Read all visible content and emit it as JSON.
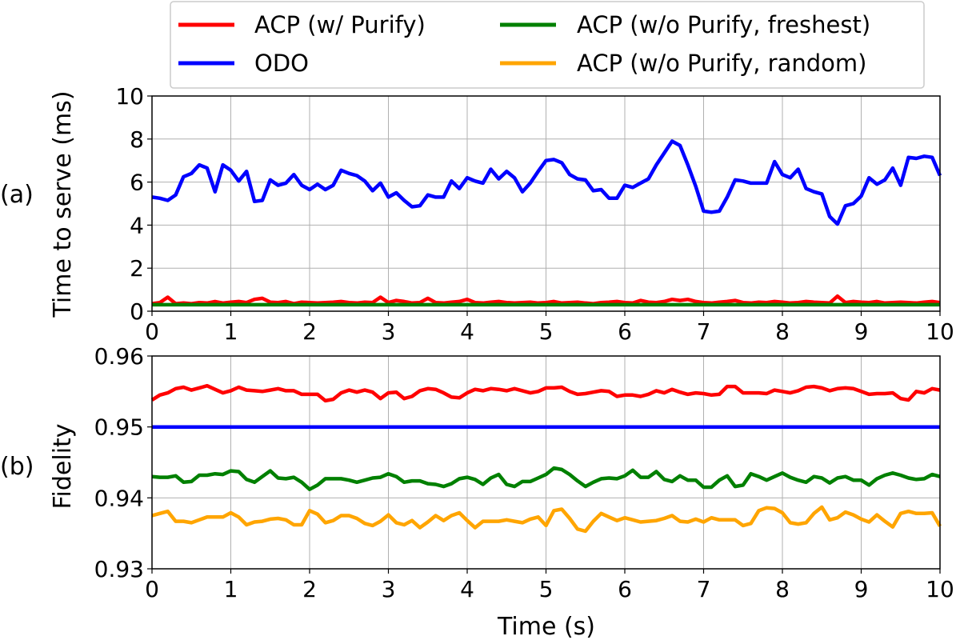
{
  "chart_data": [
    {
      "id": "a",
      "type": "line",
      "panel_label": "(a)",
      "ylabel": "Time to serve (ms)",
      "xlim": [
        0,
        10
      ],
      "ylim": [
        0,
        10
      ],
      "xticks": [
        "0",
        "1",
        "2",
        "3",
        "4",
        "5",
        "6",
        "7",
        "8",
        "9",
        "10"
      ],
      "yticks": [
        "0",
        "2",
        "4",
        "6",
        "8",
        "10"
      ],
      "grid": true,
      "x": [
        0,
        0.1,
        0.2,
        0.3,
        0.4,
        0.5,
        0.6,
        0.7,
        0.8,
        0.9,
        1.0,
        1.1,
        1.2,
        1.3,
        1.4,
        1.5,
        1.6,
        1.7,
        1.8,
        1.9,
        2.0,
        2.1,
        2.2,
        2.3,
        2.4,
        2.5,
        2.6,
        2.7,
        2.8,
        2.9,
        3.0,
        3.1,
        3.2,
        3.3,
        3.4,
        3.5,
        3.6,
        3.7,
        3.8,
        3.9,
        4.0,
        4.1,
        4.2,
        4.3,
        4.4,
        4.5,
        4.6,
        4.7,
        4.8,
        4.9,
        5.0,
        5.1,
        5.2,
        5.3,
        5.4,
        5.5,
        5.6,
        5.7,
        5.8,
        5.9,
        6.0,
        6.1,
        6.2,
        6.3,
        6.4,
        6.5,
        6.6,
        6.7,
        6.8,
        6.9,
        7.0,
        7.1,
        7.2,
        7.3,
        7.4,
        7.5,
        7.6,
        7.7,
        7.8,
        7.9,
        8.0,
        8.1,
        8.2,
        8.3,
        8.4,
        8.5,
        8.6,
        8.7,
        8.8,
        8.9,
        9.0,
        9.1,
        9.2,
        9.3,
        9.4,
        9.5,
        9.6,
        9.7,
        9.8,
        9.9,
        10.0
      ],
      "series": [
        {
          "name": "ODO",
          "color": "#0000ff",
          "values": [
            5.3,
            5.25,
            5.15,
            5.4,
            6.25,
            6.4,
            6.8,
            6.65,
            5.55,
            6.8,
            6.55,
            6.05,
            6.5,
            5.1,
            5.15,
            6.1,
            5.85,
            5.95,
            6.35,
            5.85,
            5.65,
            5.9,
            5.65,
            5.85,
            6.55,
            6.4,
            6.3,
            6.05,
            5.6,
            5.95,
            5.3,
            5.5,
            5.15,
            4.85,
            4.9,
            5.4,
            5.3,
            5.3,
            6.05,
            5.7,
            6.2,
            6.05,
            5.95,
            6.6,
            6.15,
            6.5,
            6.2,
            5.55,
            5.95,
            6.5,
            7.0,
            7.05,
            6.9,
            6.35,
            6.15,
            6.1,
            5.6,
            5.65,
            5.25,
            5.25,
            5.85,
            5.75,
            5.95,
            6.15,
            6.8,
            7.35,
            7.9,
            7.7,
            6.8,
            5.8,
            4.65,
            4.6,
            4.65,
            5.3,
            6.1,
            6.05,
            5.95,
            5.95,
            5.95,
            6.95,
            6.35,
            6.2,
            6.6,
            5.7,
            5.55,
            5.45,
            4.4,
            4.05,
            4.9,
            5.0,
            5.35,
            6.2,
            5.9,
            6.1,
            6.65,
            5.85,
            7.15,
            7.1,
            7.2,
            7.15,
            6.3
          ]
        },
        {
          "name": "ACP (w/ Purify)",
          "color": "#ff0000",
          "values": [
            0.35,
            0.4,
            0.65,
            0.35,
            0.38,
            0.35,
            0.4,
            0.38,
            0.45,
            0.38,
            0.42,
            0.45,
            0.4,
            0.55,
            0.6,
            0.42,
            0.4,
            0.45,
            0.35,
            0.42,
            0.4,
            0.38,
            0.4,
            0.42,
            0.45,
            0.4,
            0.38,
            0.42,
            0.4,
            0.65,
            0.4,
            0.5,
            0.45,
            0.38,
            0.4,
            0.6,
            0.4,
            0.38,
            0.42,
            0.45,
            0.55,
            0.4,
            0.38,
            0.42,
            0.45,
            0.4,
            0.38,
            0.4,
            0.42,
            0.38,
            0.4,
            0.45,
            0.38,
            0.4,
            0.42,
            0.38,
            0.35,
            0.4,
            0.42,
            0.45,
            0.4,
            0.38,
            0.5,
            0.42,
            0.4,
            0.45,
            0.55,
            0.5,
            0.55,
            0.45,
            0.4,
            0.38,
            0.42,
            0.45,
            0.5,
            0.4,
            0.38,
            0.42,
            0.4,
            0.45,
            0.42,
            0.38,
            0.4,
            0.45,
            0.42,
            0.4,
            0.38,
            0.7,
            0.4,
            0.45,
            0.42,
            0.4,
            0.45,
            0.38,
            0.4,
            0.42,
            0.4,
            0.38,
            0.42,
            0.45,
            0.4
          ]
        },
        {
          "name": "ACP (w/o Purify, freshest)",
          "color": "#008000",
          "values": [
            0.3,
            0.3,
            0.3,
            0.3,
            0.3,
            0.3,
            0.3,
            0.3,
            0.3,
            0.3,
            0.3,
            0.3,
            0.3,
            0.3,
            0.3,
            0.3,
            0.3,
            0.3,
            0.3,
            0.3,
            0.3,
            0.3,
            0.3,
            0.3,
            0.3,
            0.3,
            0.3,
            0.3,
            0.3,
            0.3,
            0.3,
            0.3,
            0.3,
            0.3,
            0.3,
            0.3,
            0.3,
            0.3,
            0.3,
            0.3,
            0.3,
            0.3,
            0.3,
            0.3,
            0.3,
            0.3,
            0.3,
            0.3,
            0.3,
            0.3,
            0.3,
            0.3,
            0.3,
            0.3,
            0.3,
            0.3,
            0.3,
            0.3,
            0.3,
            0.3,
            0.3,
            0.3,
            0.3,
            0.3,
            0.3,
            0.3,
            0.3,
            0.3,
            0.3,
            0.3,
            0.3,
            0.3,
            0.3,
            0.3,
            0.3,
            0.3,
            0.3,
            0.3,
            0.3,
            0.3,
            0.3,
            0.3,
            0.3,
            0.3,
            0.3,
            0.3,
            0.3,
            0.3,
            0.3,
            0.3,
            0.3,
            0.3,
            0.3,
            0.3,
            0.3,
            0.3,
            0.3,
            0.3,
            0.3,
            0.3,
            0.3
          ]
        }
      ]
    },
    {
      "id": "b",
      "type": "line",
      "panel_label": "(b)",
      "xlabel": "Time (s)",
      "ylabel": "Fidelity",
      "xlim": [
        0,
        10
      ],
      "ylim": [
        0.93,
        0.96
      ],
      "xticks": [
        "0",
        "1",
        "2",
        "3",
        "4",
        "5",
        "6",
        "7",
        "8",
        "9",
        "10"
      ],
      "yticks": [
        "0.93",
        "0.94",
        "0.95",
        "0.96"
      ],
      "grid": true,
      "x": [
        0,
        0.1,
        0.2,
        0.3,
        0.4,
        0.5,
        0.6,
        0.7,
        0.8,
        0.9,
        1.0,
        1.1,
        1.2,
        1.3,
        1.4,
        1.5,
        1.6,
        1.7,
        1.8,
        1.9,
        2.0,
        2.1,
        2.2,
        2.3,
        2.4,
        2.5,
        2.6,
        2.7,
        2.8,
        2.9,
        3.0,
        3.1,
        3.2,
        3.3,
        3.4,
        3.5,
        3.6,
        3.7,
        3.8,
        3.9,
        4.0,
        4.1,
        4.2,
        4.3,
        4.4,
        4.5,
        4.6,
        4.7,
        4.8,
        4.9,
        5.0,
        5.1,
        5.2,
        5.3,
        5.4,
        5.5,
        5.6,
        5.7,
        5.8,
        5.9,
        6.0,
        6.1,
        6.2,
        6.3,
        6.4,
        6.5,
        6.6,
        6.7,
        6.8,
        6.9,
        7.0,
        7.1,
        7.2,
        7.3,
        7.4,
        7.5,
        7.6,
        7.7,
        7.8,
        7.9,
        8.0,
        8.1,
        8.2,
        8.3,
        8.4,
        8.5,
        8.6,
        8.7,
        8.8,
        8.9,
        9.0,
        9.1,
        9.2,
        9.3,
        9.4,
        9.5,
        9.6,
        9.7,
        9.8,
        9.9,
        10.0
      ],
      "series": [
        {
          "name": "ACP (w/ Purify)",
          "color": "#ff0000",
          "values": [
            0.9538,
            0.9545,
            0.9548,
            0.9554,
            0.9556,
            0.9552,
            0.9555,
            0.9558,
            0.9553,
            0.9548,
            0.9551,
            0.9556,
            0.9552,
            0.9551,
            0.955,
            0.9552,
            0.9554,
            0.9551,
            0.9551,
            0.9546,
            0.9546,
            0.9546,
            0.9537,
            0.9539,
            0.9548,
            0.9552,
            0.9549,
            0.9552,
            0.9549,
            0.954,
            0.9548,
            0.9549,
            0.954,
            0.9543,
            0.9551,
            0.9554,
            0.9553,
            0.9548,
            0.9542,
            0.9541,
            0.9548,
            0.9553,
            0.9551,
            0.9554,
            0.9553,
            0.9551,
            0.9554,
            0.9551,
            0.9548,
            0.955,
            0.9555,
            0.9555,
            0.9556,
            0.955,
            0.9546,
            0.9547,
            0.9549,
            0.9551,
            0.955,
            0.9543,
            0.9545,
            0.9545,
            0.9543,
            0.9546,
            0.9551,
            0.9548,
            0.9553,
            0.9549,
            0.9546,
            0.9548,
            0.9547,
            0.9545,
            0.9546,
            0.9557,
            0.9557,
            0.9548,
            0.9548,
            0.9548,
            0.9547,
            0.9552,
            0.955,
            0.9548,
            0.9551,
            0.9556,
            0.9557,
            0.9555,
            0.9551,
            0.9554,
            0.9555,
            0.9554,
            0.955,
            0.9546,
            0.9547,
            0.9547,
            0.9548,
            0.954,
            0.9538,
            0.955,
            0.9548,
            0.9554,
            0.9552
          ]
        },
        {
          "name": "ODO",
          "color": "#0000ff",
          "values": [
            0.95,
            0.95,
            0.95,
            0.95,
            0.95,
            0.95,
            0.95,
            0.95,
            0.95,
            0.95,
            0.95,
            0.95,
            0.95,
            0.95,
            0.95,
            0.95,
            0.95,
            0.95,
            0.95,
            0.95,
            0.95,
            0.95,
            0.95,
            0.95,
            0.95,
            0.95,
            0.95,
            0.95,
            0.95,
            0.95,
            0.95,
            0.95,
            0.95,
            0.95,
            0.95,
            0.95,
            0.95,
            0.95,
            0.95,
            0.95,
            0.95,
            0.95,
            0.95,
            0.95,
            0.95,
            0.95,
            0.95,
            0.95,
            0.95,
            0.95,
            0.95,
            0.95,
            0.95,
            0.95,
            0.95,
            0.95,
            0.95,
            0.95,
            0.95,
            0.95,
            0.95,
            0.95,
            0.95,
            0.95,
            0.95,
            0.95,
            0.95,
            0.95,
            0.95,
            0.95,
            0.95,
            0.95,
            0.95,
            0.95,
            0.95,
            0.95,
            0.95,
            0.95,
            0.95,
            0.95,
            0.95,
            0.95,
            0.95,
            0.95,
            0.95,
            0.95,
            0.95,
            0.95,
            0.95,
            0.95,
            0.95,
            0.95,
            0.95,
            0.95,
            0.95,
            0.95,
            0.95,
            0.95,
            0.95,
            0.95,
            0.95
          ]
        },
        {
          "name": "ACP (w/o Purify, freshest)",
          "color": "#008000",
          "values": [
            0.943,
            0.9429,
            0.9429,
            0.9431,
            0.9422,
            0.9423,
            0.9432,
            0.9432,
            0.9434,
            0.9433,
            0.9438,
            0.9437,
            0.9426,
            0.9422,
            0.943,
            0.9438,
            0.9428,
            0.9427,
            0.9429,
            0.9422,
            0.9412,
            0.9418,
            0.9427,
            0.9427,
            0.9427,
            0.9425,
            0.9422,
            0.9425,
            0.9428,
            0.9429,
            0.9434,
            0.943,
            0.9422,
            0.9424,
            0.9424,
            0.942,
            0.9419,
            0.9416,
            0.942,
            0.9427,
            0.9429,
            0.9426,
            0.9419,
            0.9428,
            0.9433,
            0.9419,
            0.9416,
            0.9423,
            0.9423,
            0.9428,
            0.9433,
            0.9442,
            0.944,
            0.9433,
            0.9424,
            0.9416,
            0.9422,
            0.9427,
            0.9428,
            0.9427,
            0.9431,
            0.9439,
            0.9429,
            0.9429,
            0.9437,
            0.9426,
            0.9423,
            0.9431,
            0.9425,
            0.9425,
            0.9415,
            0.9415,
            0.9425,
            0.9431,
            0.9416,
            0.9418,
            0.9434,
            0.943,
            0.9425,
            0.943,
            0.9435,
            0.9429,
            0.9425,
            0.9422,
            0.943,
            0.9428,
            0.9421,
            0.9428,
            0.943,
            0.9425,
            0.9425,
            0.9418,
            0.9427,
            0.9432,
            0.9435,
            0.9432,
            0.9428,
            0.9426,
            0.9427,
            0.9433,
            0.943
          ]
        },
        {
          "name": "ACP (w/o Purify, random)",
          "color": "#ffa500",
          "values": [
            0.9375,
            0.9378,
            0.9381,
            0.9367,
            0.9367,
            0.9365,
            0.9369,
            0.9373,
            0.9373,
            0.9373,
            0.9379,
            0.9373,
            0.9362,
            0.9366,
            0.9367,
            0.937,
            0.9371,
            0.9369,
            0.9362,
            0.9362,
            0.9382,
            0.9377,
            0.9365,
            0.9368,
            0.9375,
            0.9375,
            0.9371,
            0.9364,
            0.9361,
            0.9367,
            0.9376,
            0.9365,
            0.9362,
            0.9368,
            0.9358,
            0.9366,
            0.9375,
            0.9368,
            0.9375,
            0.9379,
            0.9368,
            0.9358,
            0.9367,
            0.9367,
            0.9367,
            0.9369,
            0.9367,
            0.9365,
            0.937,
            0.9373,
            0.9361,
            0.9382,
            0.9384,
            0.9371,
            0.9356,
            0.9353,
            0.9367,
            0.9378,
            0.9373,
            0.9368,
            0.9372,
            0.9369,
            0.9366,
            0.9367,
            0.9368,
            0.9371,
            0.9375,
            0.9367,
            0.9366,
            0.937,
            0.9366,
            0.9372,
            0.9369,
            0.9369,
            0.9369,
            0.9361,
            0.9364,
            0.9382,
            0.9386,
            0.9385,
            0.9379,
            0.9365,
            0.9363,
            0.9365,
            0.9378,
            0.9387,
            0.9369,
            0.9372,
            0.938,
            0.9376,
            0.937,
            0.9366,
            0.9376,
            0.9367,
            0.9359,
            0.9378,
            0.9381,
            0.9378,
            0.9378,
            0.9379,
            0.936
          ]
        }
      ]
    }
  ],
  "legend": {
    "placement": "top-center",
    "entries": [
      {
        "label": "ACP (w/ Purify)",
        "color": "#ff0000"
      },
      {
        "label": "ODO",
        "color": "#0000ff"
      },
      {
        "label": "ACP (w/o Purify, freshest)",
        "color": "#008000"
      },
      {
        "label": "ACP (w/o Purify, random)",
        "color": "#ffa500"
      }
    ]
  }
}
